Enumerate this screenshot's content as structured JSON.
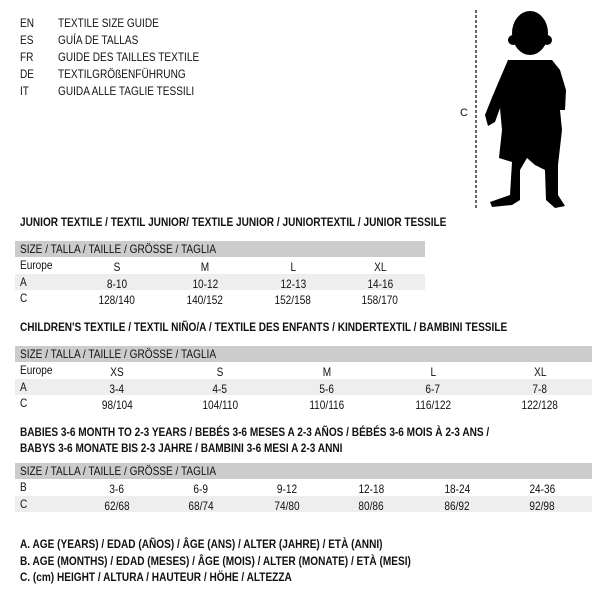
{
  "header": {
    "languages": [
      {
        "code": "EN",
        "text": "TEXTILE SIZE GUIDE"
      },
      {
        "code": "ES",
        "text": "GUÍA DE TALLAS"
      },
      {
        "code": "FR",
        "text": "GUIDE DES TAILLES TEXTILE"
      },
      {
        "code": "DE",
        "text": "TEXTILGRÖßENFÜHRUNG"
      },
      {
        "code": "IT",
        "text": "GUIDA ALLE TAGLIE TESSILI"
      }
    ],
    "figure_label": "C"
  },
  "tables": [
    {
      "title": "JUNIOR TEXTILE / TEXTIL JUNIOR/ TEXTILE JUNIOR / JUNIORTEXTIL / JUNIOR TESSILE",
      "size_header": "SIZE / TALLA / TAILLE / GRÖSSE / TAGLIA",
      "rows": [
        {
          "label": "Europe",
          "values": [
            "S",
            "M",
            "L",
            "XL"
          ]
        },
        {
          "label": "A",
          "values": [
            "8-10",
            "10-12",
            "12-13",
            "14-16"
          ]
        },
        {
          "label": "C",
          "values": [
            "128/140",
            "140/152",
            "152/158",
            "158/170"
          ]
        }
      ]
    },
    {
      "title": "CHILDREN'S TEXTILE / TEXTIL NIÑO/A / TEXTILE DES ENFANTS / KINDERTEXTIL / BAMBINI TESSILE",
      "size_header": "SIZE / TALLA / TAILLE / GRÖSSE / TAGLIA",
      "rows": [
        {
          "label": "Europe",
          "values": [
            "XS",
            "S",
            "M",
            "L",
            "XL"
          ]
        },
        {
          "label": "A",
          "values": [
            "3-4",
            "4-5",
            "5-6",
            "6-7",
            "7-8"
          ]
        },
        {
          "label": "C",
          "values": [
            "98/104",
            "104/110",
            "110/116",
            "116/122",
            "122/128"
          ]
        }
      ]
    },
    {
      "title": "BABIES 3-6 MONTH TO 2-3 YEARS / BEBÉS 3-6 MESES A 2-3 AÑOS / BÉBÉS 3-6 MOIS À 2-3 ANS /",
      "title2": "BABYS 3-6 MONATE BIS 2-3 JAHRE / BAMBINI 3-6 MESI A 2-3 ANNI",
      "size_header": "SIZE / TALLA / TAILLE / GRÖSSE / TAGLIA",
      "rows": [
        {
          "label": "B",
          "values": [
            "3-6",
            "6-9",
            "9-12",
            "12-18",
            "18-24",
            "24-36"
          ]
        },
        {
          "label": "C",
          "values": [
            "62/68",
            "68/74",
            "74/80",
            "80/86",
            "86/92",
            "92/98"
          ]
        }
      ]
    }
  ],
  "legend": [
    "A. AGE (YEARS) / EDAD (AÑOS) / ÂGE (ANS) / ALTER (JAHRE) / ETÀ (ANNI)",
    "B. AGE (MONTHS) / EDAD (MESES) / ÂGE (MOIS) / ALTER (MONATE) / ETÀ (MESI)",
    "C. (cm) HEIGHT / ALTURA / HAUTEUR / HÖHE / ALTEZZA"
  ],
  "colors": {
    "header_band": "#cccccc",
    "alt_row": "#eeeeee",
    "text": "#111111"
  }
}
